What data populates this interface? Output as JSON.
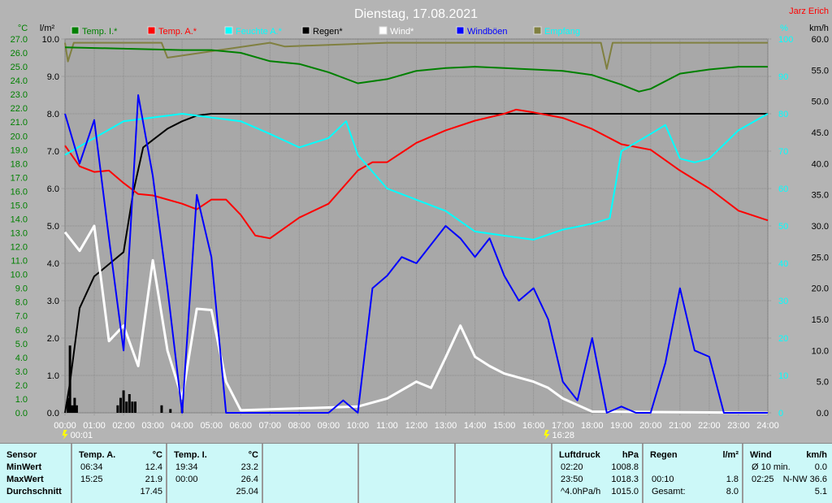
{
  "header": {
    "title": "Dienstag, 17.08.2021",
    "author": "Jarz Erich"
  },
  "chart_data": {
    "type": "line",
    "title": "Dienstag, 17.08.2021",
    "axes": {
      "left_temp": {
        "unit": "°C",
        "range": [
          0,
          27
        ],
        "ticks": [
          "0.0",
          "1.0",
          "2.0",
          "3.0",
          "4.0",
          "5.0",
          "6.0",
          "7.0",
          "8.0",
          "9.0",
          "10.0",
          "11.0",
          "12.0",
          "13.0",
          "14.0",
          "15.0",
          "16.0",
          "17.0",
          "18.0",
          "19.0",
          "20.0",
          "21.0",
          "22.0",
          "23.0",
          "24.0",
          "25.0",
          "26.0",
          "27.0"
        ],
        "color": "#008000"
      },
      "left_rain": {
        "unit": "l/m²",
        "range": [
          0,
          10
        ],
        "ticks": [
          "0.0",
          "1.0",
          "2.0",
          "3.0",
          "4.0",
          "5.0",
          "6.0",
          "7.0",
          "8.0",
          "9.0",
          "10.0"
        ]
      },
      "right_hum": {
        "unit": "%",
        "range": [
          0,
          100
        ],
        "ticks": [
          "0",
          "10",
          "20",
          "30",
          "40",
          "50",
          "60",
          "70",
          "80",
          "90",
          "100"
        ],
        "color": "#00ffff"
      },
      "right_wind": {
        "unit": "km/h",
        "range": [
          0,
          60
        ],
        "ticks": [
          "0.0",
          "5.0",
          "10.0",
          "15.0",
          "20.0",
          "25.0",
          "30.0",
          "35.0",
          "40.0",
          "45.0",
          "50.0",
          "55.0",
          "60.0"
        ]
      },
      "x": {
        "range": [
          "00:00",
          "24:00"
        ],
        "ticks": [
          "00:00",
          "01:00",
          "02:00",
          "03:00",
          "04:00",
          "05:00",
          "06:00",
          "07:00",
          "08:00",
          "09:00",
          "10:00",
          "11:00",
          "12:00",
          "13:00",
          "14:00",
          "15:00",
          "16:00",
          "17:00",
          "18:00",
          "19:00",
          "20:00",
          "21:00",
          "22:00",
          "23:00",
          "24:00"
        ]
      }
    },
    "grid": true,
    "legend": [
      {
        "name": "Temp. I.*",
        "color": "#008000"
      },
      {
        "name": "Temp. A.*",
        "color": "#ff0000"
      },
      {
        "name": "Feuchte A.*",
        "color": "#00ffff"
      },
      {
        "name": "Regen*",
        "color": "#000000"
      },
      {
        "name": "Wind*",
        "color": "#ffffff"
      },
      {
        "name": "Windböen",
        "color": "#0000ff"
      },
      {
        "name": "Empfang",
        "color": "#808040"
      }
    ],
    "legend_placement": "top",
    "markers": [
      {
        "time": "00:01",
        "label": "00:01"
      },
      {
        "time": "16:28",
        "label": "16:28"
      }
    ],
    "series": [
      {
        "name": "Temp. I.*",
        "axis": "left_temp",
        "color": "#008000",
        "x": [
          0,
          2,
          4,
          5,
          6,
          7,
          8,
          9,
          10,
          11,
          12,
          13,
          14,
          15,
          16,
          17,
          18,
          19,
          19.6,
          20,
          21,
          22,
          23,
          24
        ],
        "y": [
          26.4,
          26.3,
          26.2,
          26.2,
          26.0,
          25.4,
          25.2,
          24.6,
          23.8,
          24.1,
          24.7,
          24.9,
          25.0,
          24.9,
          24.8,
          24.7,
          24.4,
          23.7,
          23.2,
          23.4,
          24.5,
          24.8,
          25.0,
          25.0
        ]
      },
      {
        "name": "Temp. A.*",
        "axis": "left_temp",
        "color": "#ff0000",
        "x": [
          0,
          0.5,
          1,
          1.5,
          2,
          2.5,
          3,
          4,
          4.5,
          5,
          5.5,
          6,
          6.5,
          7,
          8,
          9,
          10,
          10.5,
          11,
          12,
          13,
          14,
          15,
          15.4,
          16,
          17,
          18,
          19,
          20,
          21,
          22,
          23,
          24
        ],
        "y": [
          19.3,
          17.8,
          17.4,
          17.5,
          16.6,
          15.8,
          15.7,
          15.1,
          14.7,
          15.4,
          15.4,
          14.3,
          12.8,
          12.6,
          14.1,
          15.1,
          17.5,
          18.1,
          18.1,
          19.5,
          20.4,
          21.1,
          21.6,
          21.9,
          21.7,
          21.3,
          20.5,
          19.4,
          19.0,
          17.5,
          16.2,
          14.6,
          13.9
        ]
      },
      {
        "name": "Feuchte A.*",
        "axis": "right_hum",
        "color": "#00ffff",
        "x": [
          0,
          1,
          2,
          3,
          4,
          5,
          6,
          7,
          8,
          9,
          9.6,
          10,
          11,
          12,
          13,
          14,
          15,
          16,
          17,
          18,
          18.6,
          19,
          20,
          20.5,
          21,
          21.5,
          22,
          23,
          24
        ],
        "y": [
          69,
          73.5,
          78,
          79,
          80,
          79,
          78,
          74.6,
          71,
          73.5,
          78,
          69,
          60,
          57,
          54,
          48.5,
          47.4,
          46.3,
          49,
          50.6,
          52,
          70,
          74.6,
          77,
          68,
          67,
          68,
          75.6,
          80
        ]
      },
      {
        "name": "Regen*",
        "axis": "left_rain",
        "color": "#000000",
        "x": [
          0,
          0.17,
          0.5,
          1,
          2,
          2.33,
          2.67,
          3,
          3.5,
          4,
          4.5,
          5,
          24
        ],
        "y": [
          0,
          0.8,
          2.8,
          3.65,
          4.3,
          5.9,
          7.1,
          7.3,
          7.6,
          7.8,
          7.95,
          8.0,
          8.0
        ]
      },
      {
        "name": "Wind*",
        "axis": "right_wind",
        "color": "#ffffff",
        "x": [
          0,
          0.5,
          1,
          1.5,
          2,
          2.5,
          3,
          3.5,
          4,
          4.5,
          5,
          5.5,
          6,
          10,
          11,
          12,
          12.5,
          13,
          13.5,
          14,
          14.5,
          15,
          16,
          16.5,
          17,
          18,
          24
        ],
        "y": [
          29,
          26,
          30,
          11.5,
          14,
          7.5,
          24.5,
          10,
          2.3,
          16.7,
          16.5,
          5,
          0.4,
          1,
          2.3,
          5,
          4,
          8.9,
          14,
          9,
          7.5,
          6.3,
          5,
          4,
          2.3,
          0.2,
          0
        ]
      },
      {
        "name": "Windböen",
        "axis": "right_wind",
        "color": "#0000ff",
        "x": [
          0,
          0.5,
          1,
          1.5,
          2,
          2.5,
          3,
          3.5,
          4,
          4.5,
          5,
          5.5,
          6,
          9,
          9.5,
          10,
          10.5,
          11,
          11.5,
          12,
          12.5,
          13,
          13.5,
          14,
          14.5,
          15,
          15.5,
          16,
          16.5,
          17,
          17.5,
          18,
          18.5,
          19,
          19.5,
          20,
          20.5,
          21,
          21.5,
          22,
          22.5,
          24
        ],
        "y": [
          48,
          40,
          47,
          28,
          10,
          51,
          38,
          20,
          0,
          35,
          25,
          0,
          0,
          0,
          2,
          0,
          20,
          22,
          25,
          24,
          27,
          30,
          28,
          25,
          28,
          22,
          18,
          20,
          15,
          5,
          2,
          12,
          0,
          1,
          0,
          0,
          8,
          20,
          10,
          9,
          0,
          0
        ]
      },
      {
        "name": "Empfang",
        "axis": "right_hum",
        "color": "#808040",
        "x": [
          0,
          0.1,
          0.3,
          2,
          3.3,
          3.5,
          7,
          7.5,
          11,
          15,
          18.3,
          18.5,
          18.7,
          19,
          24
        ],
        "y": [
          99,
          94,
          99,
          99,
          99,
          95,
          99,
          98,
          99,
          99,
          99,
          92,
          99,
          99,
          99
        ]
      }
    ],
    "rain_bars": {
      "axis": "left_rain",
      "x": [
        0.1,
        0.17,
        0.25,
        0.33,
        0.4,
        1.8,
        1.9,
        2.0,
        2.1,
        2.2,
        2.3,
        2.4,
        3.3,
        3.6,
        4.0
      ],
      "y": [
        0.4,
        1.8,
        0.2,
        0.4,
        0.2,
        0.2,
        0.4,
        0.6,
        0.3,
        0.5,
        0.3,
        0.3,
        0.2,
        0.1,
        0.2
      ]
    }
  },
  "table": {
    "columns": [
      {
        "title": "Sensor",
        "rows": [
          "MinWert",
          "MaxWert",
          "Durchschnitt"
        ]
      },
      {
        "title": "Temp. A.",
        "unit": "°C",
        "rows": [
          [
            "06:34",
            "12.4"
          ],
          [
            "15:25",
            "21.9"
          ],
          [
            "",
            "17.45"
          ]
        ]
      },
      {
        "title": "Temp. I.",
        "unit": "°C",
        "rows": [
          [
            "19:34",
            "23.2"
          ],
          [
            "00:00",
            "26.4"
          ],
          [
            "",
            "25.04"
          ]
        ]
      },
      {
        "title": "Luftdruck",
        "unit": "hPa",
        "rows": [
          [
            "02:20",
            "1008.8"
          ],
          [
            "23:50",
            "1018.3"
          ],
          [
            "^4.0hPa/h",
            "1015.0"
          ]
        ]
      },
      {
        "title": "Regen",
        "unit": "l/m²",
        "rows": [
          [
            "",
            ""
          ],
          [
            "00:10",
            "1.8"
          ],
          [
            "Gesamt:",
            "8.0"
          ]
        ]
      },
      {
        "title": "Wind",
        "unit": "km/h",
        "rows": [
          [
            "Ø 10 min.",
            "0.0"
          ],
          [
            "02:25",
            "N-NW 36.6"
          ],
          [
            "",
            "5.1"
          ]
        ]
      }
    ]
  }
}
